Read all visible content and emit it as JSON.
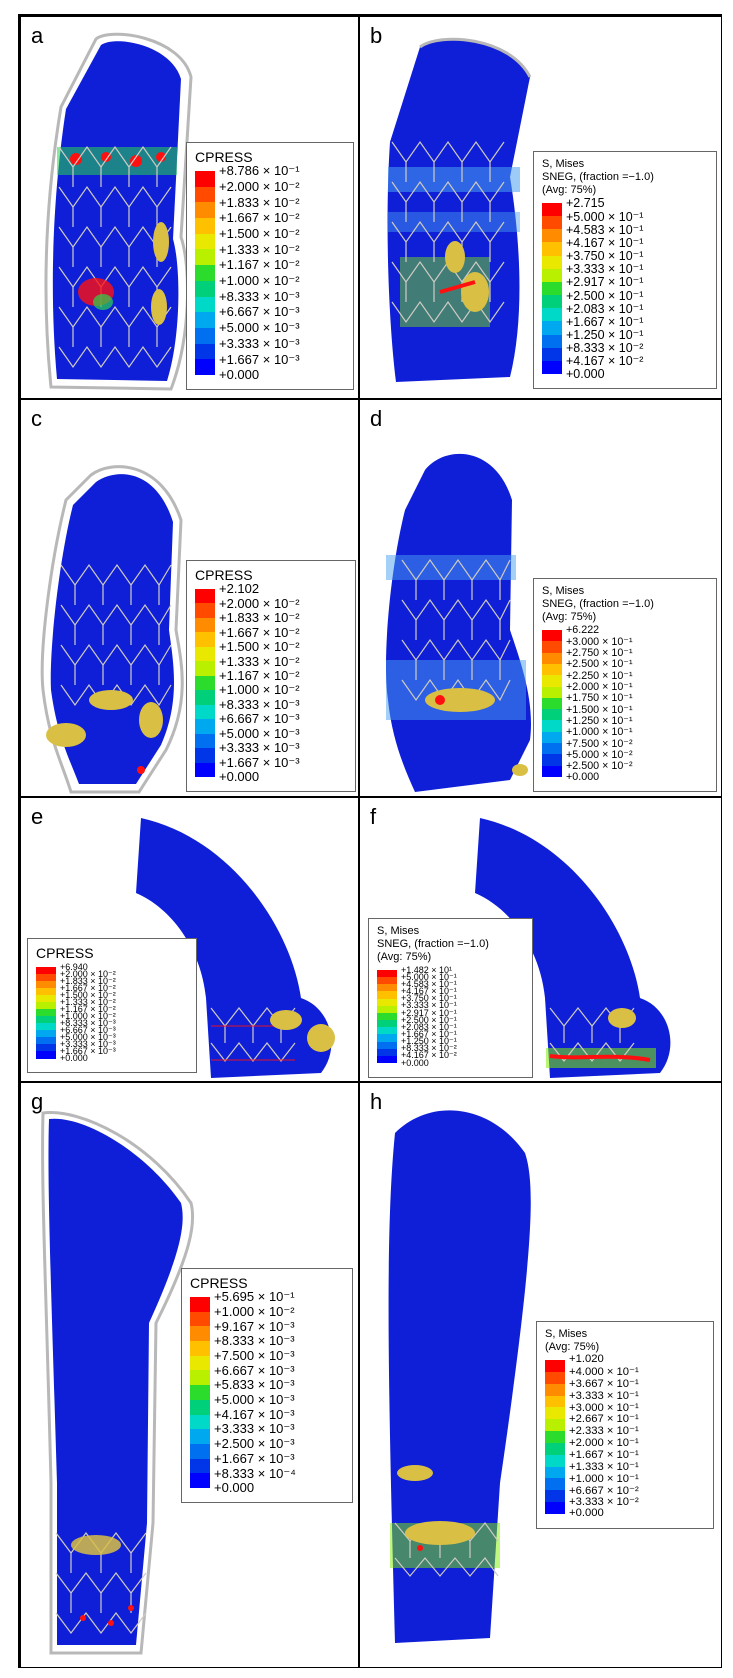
{
  "colors": {
    "vessel": "#0f1fd8",
    "vessel_dark": "#0a129a",
    "stent": "#d0ccc4",
    "plaque": "#d9c044",
    "hot": "#ff1010",
    "green": "#2ad64a",
    "outline": "#b8b8b8"
  },
  "scale_colors": [
    "#ff0000",
    "#ff4a00",
    "#ff8c00",
    "#ffc000",
    "#e8e800",
    "#b8f000",
    "#7ff000",
    "#2cdc2c",
    "#00d07a",
    "#00d8c8",
    "#00a8f0",
    "#0070f0",
    "#0036e8",
    "#0000ff"
  ],
  "panels": [
    {
      "label": "a",
      "legend": {
        "title": [
          "CPRESS"
        ],
        "values": [
          "+8.786 × 10⁻¹",
          "+2.000 × 10⁻²",
          "+1.833 × 10⁻²",
          "+1.667 × 10⁻²",
          "+1.500 × 10⁻²",
          "+1.333 × 10⁻²",
          "+1.167 × 10⁻²",
          "+1.000 × 10⁻²",
          "+8.333 × 10⁻³",
          "+6.667 × 10⁻³",
          "+5.000 × 10⁻³",
          "+3.333 × 10⁻³",
          "+1.667 × 10⁻³",
          "+0.000"
        ]
      }
    },
    {
      "label": "b",
      "legend": {
        "title": [
          "S, Mises",
          "SNEG, (fraction =−1.0)",
          "(Avg: 75%)"
        ],
        "values": [
          "+2.715",
          "+5.000 × 10⁻¹",
          "+4.583 × 10⁻¹",
          "+4.167 × 10⁻¹",
          "+3.750 × 10⁻¹",
          "+3.333 × 10⁻¹",
          "+2.917 × 10⁻¹",
          "+2.500 × 10⁻¹",
          "+2.083 × 10⁻¹",
          "+1.667 × 10⁻¹",
          "+1.250 × 10⁻¹",
          "+8.333 × 10⁻²",
          "+4.167 × 10⁻²",
          "+0.000"
        ]
      }
    },
    {
      "label": "c",
      "legend": {
        "title": [
          "CPRESS"
        ],
        "values": [
          "+2.102",
          "+2.000 × 10⁻²",
          "+1.833 × 10⁻²",
          "+1.667 × 10⁻²",
          "+1.500 × 10⁻²",
          "+1.333 × 10⁻²",
          "+1.167 × 10⁻²",
          "+1.000 × 10⁻²",
          "+8.333 × 10⁻³",
          "+6.667 × 10⁻³",
          "+5.000 × 10⁻³",
          "+3.333 × 10⁻³",
          "+1.667 × 10⁻³",
          "+0.000"
        ]
      }
    },
    {
      "label": "d",
      "legend": {
        "title": [
          "S, Mises",
          "SNEG, (fraction =−1.0)",
          "(Avg: 75%)"
        ],
        "values": [
          "+6.222",
          "+3.000 × 10⁻¹",
          "+2.750 × 10⁻¹",
          "+2.500 × 10⁻¹",
          "+2.250 × 10⁻¹",
          "+2.000 × 10⁻¹",
          "+1.750 × 10⁻¹",
          "+1.500 × 10⁻¹",
          "+1.250 × 10⁻¹",
          "+1.000 × 10⁻¹",
          "+7.500 × 10⁻²",
          "+5.000 × 10⁻²",
          "+2.500 × 10⁻²",
          "+0.000"
        ]
      }
    },
    {
      "label": "e",
      "legend": {
        "title": [
          "CPRESS"
        ],
        "values": [
          "+6.940",
          "+2.000 × 10⁻²",
          "+1.833 × 10⁻²",
          "+1.667 × 10⁻²",
          "+1.500 × 10⁻²",
          "+1.333 × 10⁻²",
          "+1.167 × 10⁻²",
          "+1.000 × 10⁻²",
          "+8.333 × 10⁻³",
          "+6.667 × 10⁻³",
          "+5.000 × 10⁻³",
          "+3.333 × 10⁻³",
          "+1.667 × 10⁻³",
          "+0.000"
        ]
      }
    },
    {
      "label": "f",
      "legend": {
        "title": [
          "S, Mises",
          "SNEG, (fraction =−1.0)",
          "(Avg: 75%)"
        ],
        "values": [
          "+1.482 × 10¹",
          "+5.000 × 10⁻¹",
          "+4.583 × 10⁻¹",
          "+4.167 × 10⁻¹",
          "+3.750 × 10⁻¹",
          "+3.333 × 10⁻¹",
          "+2.917 × 10⁻¹",
          "+2.500 × 10⁻¹",
          "+2.083 × 10⁻¹",
          "+1.667 × 10⁻¹",
          "+1.250 × 10⁻¹",
          "+8.333 × 10⁻²",
          "+4.167 × 10⁻²",
          "+0.000"
        ]
      }
    },
    {
      "label": "g",
      "legend": {
        "title": [
          "CPRESS"
        ],
        "values": [
          "+5.695 × 10⁻¹",
          "+1.000 × 10⁻²",
          "+9.167 × 10⁻³",
          "+8.333 × 10⁻³",
          "+7.500 × 10⁻³",
          "+6.667 × 10⁻³",
          "+5.833 × 10⁻³",
          "+5.000 × 10⁻³",
          "+4.167 × 10⁻³",
          "+3.333 × 10⁻³",
          "+2.500 × 10⁻³",
          "+1.667 × 10⁻³",
          "+8.333 × 10⁻⁴",
          "+0.000"
        ]
      }
    },
    {
      "label": "h",
      "legend": {
        "title": [
          "S, Mises",
          "(Avg: 75%)"
        ],
        "values": [
          "+1.020",
          "+4.000 × 10⁻¹",
          "+3.667 × 10⁻¹",
          "+3.333 × 10⁻¹",
          "+3.000 × 10⁻¹",
          "+2.667 × 10⁻¹",
          "+2.333 × 10⁻¹",
          "+2.000 × 10⁻¹",
          "+1.667 × 10⁻¹",
          "+1.333 × 10⁻¹",
          "+1.000 × 10⁻¹",
          "+6.667 × 10⁻²",
          "+3.333 × 10⁻²",
          "+0.000"
        ]
      }
    }
  ]
}
